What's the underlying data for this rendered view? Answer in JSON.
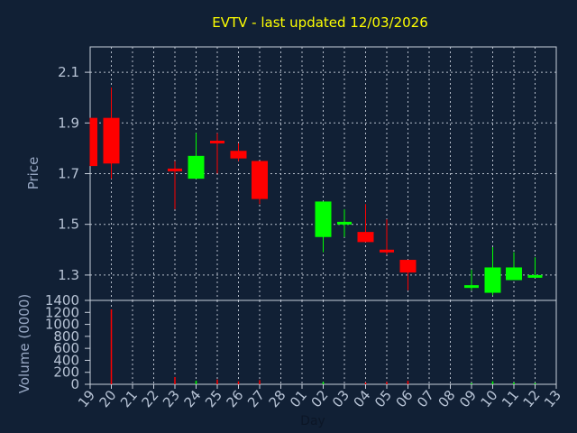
{
  "chart_data": [
    {
      "type": "candlestick",
      "title": "EVTV - last updated 12/03/2026",
      "ylabel": "Price",
      "ylim": [
        1.2,
        2.2
      ],
      "yticks": [
        "1.3",
        "1.5",
        "1.7",
        "1.9",
        "2.1"
      ],
      "up_color": "#00ff00",
      "down_color": "#ff0000",
      "grid": true,
      "x": [
        "19",
        "20",
        "21",
        "22",
        "23",
        "24",
        "25",
        "26",
        "27",
        "28",
        "01",
        "02",
        "03",
        "04",
        "05",
        "06",
        "07",
        "08",
        "09",
        "10",
        "11",
        "12",
        "13"
      ],
      "candles": [
        {
          "x": "19",
          "open": 1.92,
          "close": 1.73,
          "high": 1.92,
          "low": 1.73
        },
        {
          "x": "20",
          "open": 1.92,
          "close": 1.74,
          "high": 2.04,
          "low": 1.68
        },
        {
          "x": "23",
          "open": 1.72,
          "close": 1.71,
          "high": 1.75,
          "low": 1.56
        },
        {
          "x": "24",
          "open": 1.68,
          "close": 1.77,
          "high": 1.86,
          "low": 1.68
        },
        {
          "x": "25",
          "open": 1.83,
          "close": 1.82,
          "high": 1.86,
          "low": 1.7
        },
        {
          "x": "26",
          "open": 1.79,
          "close": 1.76,
          "high": 1.82,
          "low": 1.75
        },
        {
          "x": "27",
          "open": 1.75,
          "close": 1.6,
          "high": 1.75,
          "low": 1.58
        },
        {
          "x": "02",
          "open": 1.45,
          "close": 1.59,
          "high": 1.59,
          "low": 1.39
        },
        {
          "x": "03",
          "open": 1.5,
          "close": 1.51,
          "high": 1.56,
          "low": 1.45
        },
        {
          "x": "04",
          "open": 1.47,
          "close": 1.43,
          "high": 1.58,
          "low": 1.43
        },
        {
          "x": "05",
          "open": 1.4,
          "close": 1.39,
          "high": 1.52,
          "low": 1.38
        },
        {
          "x": "06",
          "open": 1.36,
          "close": 1.31,
          "high": 1.36,
          "low": 1.24
        },
        {
          "x": "09",
          "open": 1.25,
          "close": 1.26,
          "high": 1.32,
          "low": 1.24
        },
        {
          "x": "10",
          "open": 1.23,
          "close": 1.33,
          "high": 1.41,
          "low": 1.22
        },
        {
          "x": "11",
          "open": 1.28,
          "close": 1.33,
          "high": 1.39,
          "low": 1.28
        },
        {
          "x": "12",
          "open": 1.3,
          "close": 1.3,
          "high": 1.37,
          "low": 1.29
        }
      ]
    },
    {
      "type": "bar",
      "ylabel": "Volume (0000)",
      "xlabel": "Day",
      "ylim": [
        0,
        1400
      ],
      "yticks": [
        "0",
        "200",
        "400",
        "600",
        "800",
        "1000",
        "1200",
        "1400"
      ],
      "categories": [
        "19",
        "20",
        "21",
        "22",
        "23",
        "24",
        "25",
        "26",
        "27",
        "28",
        "01",
        "02",
        "03",
        "04",
        "05",
        "06",
        "07",
        "08",
        "09",
        "10",
        "11",
        "12",
        "13"
      ],
      "values": [
        {
          "x": "20",
          "v": 1250,
          "dir": "down"
        },
        {
          "x": "23",
          "v": 120,
          "dir": "down"
        },
        {
          "x": "24",
          "v": 60,
          "dir": "up"
        },
        {
          "x": "25",
          "v": 80,
          "dir": "down"
        },
        {
          "x": "26",
          "v": 50,
          "dir": "down"
        },
        {
          "x": "27",
          "v": 70,
          "dir": "down"
        },
        {
          "x": "02",
          "v": 40,
          "dir": "up"
        },
        {
          "x": "04",
          "v": 30,
          "dir": "down"
        },
        {
          "x": "05",
          "v": 40,
          "dir": "down"
        },
        {
          "x": "06",
          "v": 60,
          "dir": "down"
        },
        {
          "x": "09",
          "v": 20,
          "dir": "up"
        },
        {
          "x": "10",
          "v": 50,
          "dir": "up"
        },
        {
          "x": "11",
          "v": 30,
          "dir": "up"
        },
        {
          "x": "12",
          "v": 20,
          "dir": "up"
        }
      ]
    }
  ]
}
